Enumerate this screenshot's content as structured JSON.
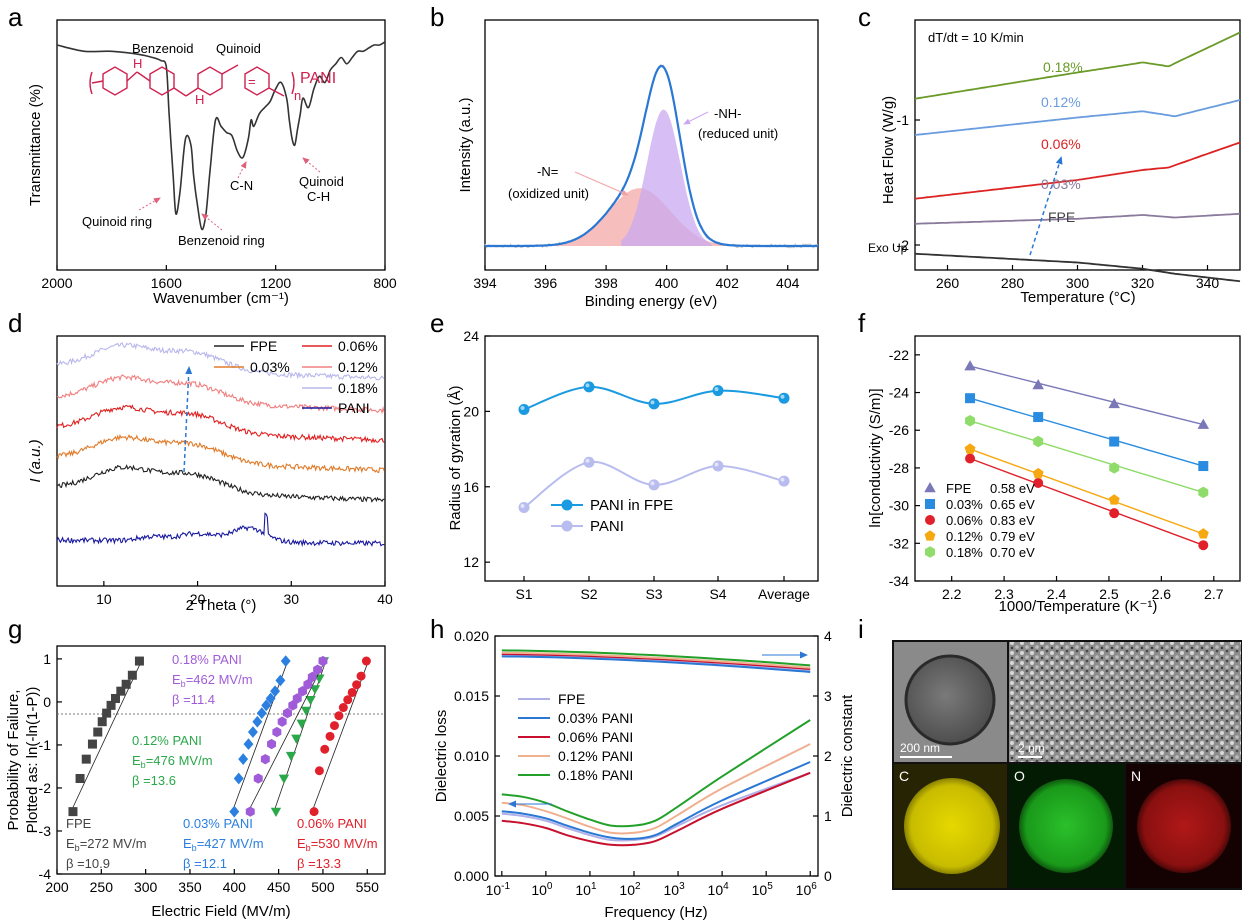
{
  "figure": {
    "panels": [
      "a",
      "b",
      "c",
      "d",
      "e",
      "f",
      "g",
      "h",
      "i"
    ]
  },
  "chart_data": [
    {
      "panel": "a",
      "type": "line",
      "title": "",
      "xlabel": "Wavenumber (cm⁻¹)",
      "ylabel": "Transmittance (%)",
      "xlim": [
        2000,
        800
      ],
      "xticks": [
        2000,
        1600,
        1200,
        800
      ],
      "series": [
        {
          "name": "PANI",
          "color": "#333333",
          "x": [
            2000,
            1900,
            1800,
            1700,
            1650,
            1620,
            1600,
            1590,
            1575,
            1565,
            1550,
            1530,
            1510,
            1500,
            1485,
            1470,
            1455,
            1440,
            1420,
            1400,
            1380,
            1360,
            1340,
            1320,
            1300,
            1290,
            1280,
            1260,
            1240,
            1220,
            1200,
            1180,
            1160,
            1150,
            1140,
            1130,
            1120,
            1110,
            1100,
            1080,
            1060,
            1040,
            1020,
            1000,
            980,
            960,
            940,
            920,
            900,
            880,
            860,
            840,
            820,
            800
          ],
          "y": [
            92,
            90,
            90,
            89,
            88,
            87,
            85,
            70,
            50,
            38,
            45,
            62,
            60,
            50,
            40,
            33,
            38,
            52,
            68,
            66,
            64,
            63,
            58,
            56,
            62,
            68,
            66,
            70,
            72,
            74,
            78,
            80,
            75,
            68,
            62,
            60,
            65,
            70,
            75,
            72,
            78,
            82,
            80,
            84,
            86,
            88,
            86,
            88,
            90,
            90,
            91,
            92,
            92,
            93
          ]
        }
      ],
      "annotations": [
        "PANI",
        "Benzenoid",
        "Quinoid",
        "Quinoid ring",
        "Benzenoid ring",
        "C-N",
        "Quinoid",
        "C-H"
      ],
      "annotation_labels": {
        "pani": "PANI",
        "benzenoid": "Benzenoid",
        "quinoid": "Quinoid",
        "quinoid_ring": "Quinoid ring",
        "benzenoid_ring": "Benzenoid ring",
        "cn": "C-N",
        "quinoid2": "Quinoid",
        "ch": "C-H",
        "h": "H",
        "n_sub": "n"
      }
    },
    {
      "panel": "b",
      "type": "area",
      "title": "",
      "xlabel": "Binding energy (eV)",
      "ylabel": "Intensity (a.u.)",
      "xlim": [
        394,
        405
      ],
      "xticks": [
        394,
        396,
        398,
        400,
        402,
        404
      ],
      "series": [
        {
          "name": "-N= (oxidized unit)",
          "center": 399.1,
          "fwhm": 2.4,
          "height": 0.33,
          "color": "#f4a3a3"
        },
        {
          "name": "-NH- (reduced unit)",
          "center": 399.9,
          "fwhm": 1.3,
          "height": 0.78,
          "color": "#c9a8f0"
        },
        {
          "name": "envelope",
          "color": "#2a78d4"
        }
      ],
      "labels": {
        "nh_line1": "-NH-",
        "nh_line2": "(reduced unit)",
        "n_line1": "-N=",
        "n_line2": "(oxidized unit)"
      }
    },
    {
      "panel": "c",
      "type": "line",
      "title": "",
      "xlabel": "Temperature (°C)",
      "ylabel": "Heat Flow (W/g)",
      "xlim": [
        250,
        350
      ],
      "ylim": [
        -2.2,
        -0.2
      ],
      "xticks": [
        260,
        280,
        300,
        320,
        340
      ],
      "yticks": [
        -1,
        -2
      ],
      "series": [
        {
          "name": "FPE",
          "color": "#333333",
          "x": [
            250,
            300,
            320,
            330,
            350
          ],
          "y": [
            -2.07,
            -2.14,
            -2.19,
            -2.23,
            -2.29
          ]
        },
        {
          "name": "0.03%",
          "color": "#8a7a9c",
          "x": [
            250,
            300,
            320,
            330,
            350
          ],
          "y": [
            -1.83,
            -1.79,
            -1.76,
            -1.78,
            -1.75
          ]
        },
        {
          "name": "0.06%",
          "color": "#dd2222",
          "x": [
            250,
            300,
            320,
            328,
            340,
            350
          ],
          "y": [
            -1.63,
            -1.48,
            -1.4,
            -1.38,
            -1.27,
            -1.18
          ]
        },
        {
          "name": "0.12%",
          "color": "#6a9ce0",
          "x": [
            250,
            300,
            320,
            330,
            350
          ],
          "y": [
            -1.12,
            -0.98,
            -0.93,
            -0.97,
            -0.84
          ]
        },
        {
          "name": "0.18%",
          "color": "#6a9a28",
          "x": [
            250,
            300,
            320,
            328,
            350
          ],
          "y": [
            -0.83,
            -0.62,
            -0.54,
            -0.57,
            -0.3
          ]
        }
      ],
      "annotations": [
        "dT/dt = 10 K/min",
        "Exo Up"
      ],
      "curve_labels": {
        "fpe": "FPE",
        "p003": "0.03%",
        "p006": "0.06%",
        "p012": "0.12%",
        "p018": "0.18%"
      }
    },
    {
      "panel": "d",
      "type": "line",
      "title": "",
      "xlabel": "2 Theta (°)",
      "ylabel": "I (a.u.)",
      "xlim": [
        5,
        40
      ],
      "xticks": [
        10,
        20,
        30,
        40
      ],
      "series": [
        {
          "name": "FPE",
          "color": "#222222"
        },
        {
          "name": "0.03%",
          "color": "#e07b2a"
        },
        {
          "name": "0.06%",
          "color": "#e02020"
        },
        {
          "name": "0.12%",
          "color": "#f08080"
        },
        {
          "name": "0.18%",
          "color": "#b8b8ec"
        },
        {
          "name": "PANI",
          "color": "#1a1aa0"
        }
      ]
    },
    {
      "panel": "e",
      "type": "line",
      "title": "",
      "xlabel": "",
      "ylabel": "Radius of gyration (Å)",
      "categories": [
        "S1",
        "S2",
        "S3",
        "S4",
        "Average"
      ],
      "ylim": [
        11,
        24
      ],
      "yticks": [
        12,
        16,
        20,
        24
      ],
      "series": [
        {
          "name": "PANI in FPE",
          "color": "#1a9ae0",
          "values": [
            20.1,
            21.3,
            20.4,
            21.1,
            20.7
          ]
        },
        {
          "name": "PANI",
          "color": "#b8bcef",
          "values": [
            14.9,
            17.3,
            16.1,
            17.1,
            16.3
          ]
        }
      ]
    },
    {
      "panel": "f",
      "type": "scatter",
      "title": "",
      "xlabel": "1000/Temperature (K⁻¹)",
      "ylabel": "ln[conductivity (S/m)]",
      "xlim": [
        2.13,
        2.75
      ],
      "ylim": [
        -34,
        -21
      ],
      "xticks": [
        2.2,
        2.3,
        2.4,
        2.5,
        2.6,
        2.7
      ],
      "yticks": [
        -22,
        -24,
        -26,
        -28,
        -30,
        -32,
        -34
      ],
      "series": [
        {
          "name": "FPE",
          "activation": "0.58 eV",
          "color": "#7b78b8",
          "marker": "triangle",
          "x": [
            2.235,
            2.365,
            2.51,
            2.68
          ],
          "y": [
            -22.6,
            -23.6,
            -24.6,
            -25.7
          ]
        },
        {
          "name": "0.03%",
          "activation": "0.65 eV",
          "color": "#2a8ce0",
          "marker": "square",
          "x": [
            2.235,
            2.365,
            2.51,
            2.68
          ],
          "y": [
            -24.3,
            -25.3,
            -26.6,
            -27.9
          ]
        },
        {
          "name": "0.06%",
          "activation": "0.83 eV",
          "color": "#e0202a",
          "marker": "circle",
          "x": [
            2.235,
            2.365,
            2.51,
            2.68
          ],
          "y": [
            -27.5,
            -28.8,
            -30.4,
            -32.1
          ]
        },
        {
          "name": "0.12%",
          "activation": "0.79 eV",
          "color": "#f5a80f",
          "marker": "pentagon",
          "x": [
            2.235,
            2.365,
            2.51,
            2.68
          ],
          "y": [
            -27.0,
            -28.3,
            -29.7,
            -31.5
          ]
        },
        {
          "name": "0.18%",
          "activation": "0.70 eV",
          "color": "#8fdc6a",
          "marker": "hexagon",
          "x": [
            2.235,
            2.365,
            2.51,
            2.68
          ],
          "y": [
            -25.5,
            -26.6,
            -28.0,
            -29.3
          ]
        }
      ]
    },
    {
      "panel": "g",
      "type": "scatter",
      "title": "",
      "xlabel": "Electric  Field (MV/m)",
      "ylabel": "Probability of Failure, Plotted as: ln(-ln(1-P))",
      "xlim": [
        200,
        570
      ],
      "ylim": [
        -4,
        1.3
      ],
      "xticks": [
        200,
        250,
        300,
        350,
        400,
        450,
        500,
        550
      ],
      "yticks": [
        1,
        0,
        -1,
        -2,
        -3,
        -4
      ],
      "series": [
        {
          "name": "FPE",
          "Eb": "E_b=272 MV/m",
          "beta": "β =10.9",
          "color": "#444444",
          "marker": "square",
          "x": [
            218,
            226,
            233,
            240,
            246,
            251,
            256,
            261,
            266,
            272,
            278,
            285,
            293
          ],
          "y": [
            -2.55,
            -1.78,
            -1.33,
            -0.98,
            -0.7,
            -0.46,
            -0.26,
            -0.08,
            0.08,
            0.25,
            0.41,
            0.62,
            0.95
          ]
        },
        {
          "name": "0.03% PANI",
          "Eb": "E_b=427 MV/m",
          "beta": "β =12.1",
          "color": "#2a7fe0",
          "marker": "diamond",
          "x": [
            400,
            405,
            410,
            416,
            421,
            426,
            431,
            436,
            441,
            446,
            452,
            458
          ],
          "y": [
            -2.55,
            -1.78,
            -1.33,
            -0.98,
            -0.7,
            -0.46,
            -0.26,
            -0.08,
            0.08,
            0.25,
            0.5,
            0.95
          ]
        },
        {
          "name": "0.06% PANI",
          "Eb": "E_b=530 MV/m",
          "beta": "β =13.3",
          "color": "#e0202a",
          "marker": "circle",
          "x": [
            490,
            496,
            502,
            508,
            513,
            518,
            523,
            528,
            533,
            538,
            543,
            549
          ],
          "y": [
            -2.55,
            -1.6,
            -1.1,
            -0.8,
            -0.55,
            -0.32,
            -0.13,
            0.05,
            0.22,
            0.4,
            0.6,
            0.95
          ]
        },
        {
          "name": "0.12% PANI",
          "Eb": "E_b=476 MV/m",
          "beta": "β =13.6",
          "color": "#2aa84a",
          "marker": "triangle",
          "x": [
            447,
            456,
            464,
            470,
            476,
            481,
            486,
            491,
            496,
            501
          ],
          "y": [
            -2.55,
            -1.78,
            -1.25,
            -0.85,
            -0.5,
            -0.2,
            0.05,
            0.3,
            0.55,
            0.95
          ]
        },
        {
          "name": "0.18% PANI",
          "Eb": "E_b=462 MV/m",
          "beta": "β =11.4",
          "color": "#a05cd8",
          "marker": "hexagon",
          "x": [
            418,
            427,
            435,
            442,
            448,
            454,
            460,
            466,
            471,
            477,
            483,
            488,
            494,
            500
          ],
          "y": [
            -2.55,
            -1.78,
            -1.33,
            -0.98,
            -0.7,
            -0.46,
            -0.26,
            -0.08,
            0.08,
            0.25,
            0.41,
            0.58,
            0.75,
            0.95
          ]
        }
      ],
      "labels": {
        "fpe_name": "FPE",
        "fpe_eb": "272 MV/m",
        "fpe_beta": "β =10.9",
        "p003_name": "0.03% PANI",
        "p003_eb": "427 MV/m",
        "p003_beta": "β =12.1",
        "p006_name": "0.06% PANI",
        "p006_eb": "530 MV/m",
        "p006_beta": "β =13.3",
        "p012_name": "0.12% PANI",
        "p012_eb": "476 MV/m",
        "p012_beta": "β =13.6",
        "p018_name": "0.18% PANI",
        "p018_eb": "462 MV/m",
        "p018_beta": "β =11.4",
        "eb_prefix": "E",
        "eb_sub": "b",
        "eb_eq": "=",
        "ylabel_line1": "Probability of Failure,",
        "ylabel_line2": "Plotted as: ln(-ln(1-P))"
      }
    },
    {
      "panel": "h",
      "type": "line",
      "title": "",
      "xlabel": "Frequency (Hz)",
      "ylabel": "Dielectric loss",
      "ylabel_right": "Dielectric constant",
      "xlim": [
        0.07,
        1500000.0
      ],
      "ylim": [
        0,
        0.02
      ],
      "ylim_right": [
        0,
        4
      ],
      "yticks": [
        0.0,
        0.005,
        0.01,
        0.015,
        0.02
      ],
      "yticks_right": [
        0,
        1,
        2,
        3,
        4
      ],
      "xtick_exponents": [
        "-1",
        "0",
        "1",
        "2",
        "3",
        "4",
        "5",
        "6"
      ],
      "xtick_base": "10",
      "series": [
        {
          "name": "FPE",
          "color": "#b0b0e8",
          "constant": [
            3.68,
            3.43
          ],
          "loss": [
            0.0052,
            0.005,
            0.0046,
            0.004,
            0.0034,
            0.003,
            0.003,
            0.0033,
            0.0042,
            0.0059,
            0.0086
          ]
        },
        {
          "name": "0.03% PANI",
          "color": "#2a78d4",
          "constant": [
            3.66,
            3.4
          ],
          "loss": [
            0.0054,
            0.0052,
            0.0048,
            0.0042,
            0.0036,
            0.0032,
            0.0031,
            0.0034,
            0.0044,
            0.0063,
            0.0095
          ]
        },
        {
          "name": "0.06% PANI",
          "color": "#c8102e",
          "constant": [
            3.7,
            3.45
          ],
          "loss": [
            0.0046,
            0.0044,
            0.004,
            0.0034,
            0.0029,
            0.0026,
            0.0026,
            0.0029,
            0.0038,
            0.0056,
            0.0086
          ]
        },
        {
          "name": "0.12% PANI",
          "color": "#f0b090",
          "constant": [
            3.72,
            3.47
          ],
          "loss": [
            0.0061,
            0.0059,
            0.0054,
            0.0048,
            0.0041,
            0.0036,
            0.0036,
            0.004,
            0.0051,
            0.0073,
            0.011
          ]
        },
        {
          "name": "0.18% PANI",
          "color": "#22a02a",
          "constant": [
            3.76,
            3.51
          ],
          "loss": [
            0.0068,
            0.0066,
            0.0061,
            0.0054,
            0.0047,
            0.0042,
            0.0042,
            0.0046,
            0.0058,
            0.0083,
            0.013
          ]
        }
      ],
      "freq_points": [
        0.1,
        0.3,
        1,
        3,
        10,
        30,
        100,
        300,
        1000,
        10000.0,
        1000000.0
      ]
    },
    {
      "panel": "i",
      "type": "other",
      "labels": [
        "200 nm",
        "2 nm",
        "C",
        "O",
        "N"
      ]
    }
  ]
}
